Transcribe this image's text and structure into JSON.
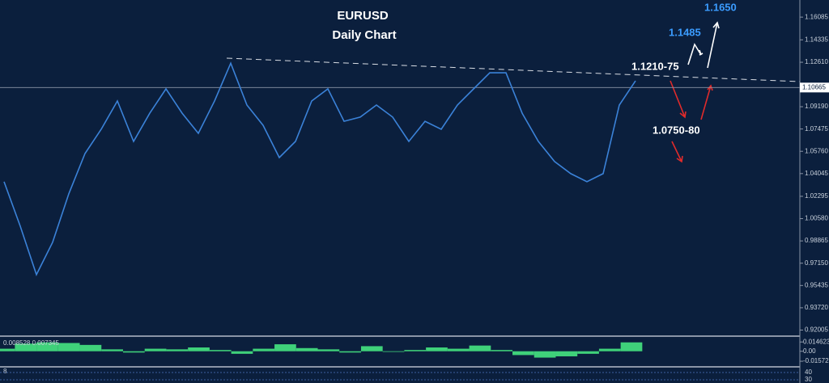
{
  "chart_data": {
    "type": "line",
    "title": "EURUSD",
    "subtitle": "Daily Chart",
    "color": "#3b82d8",
    "values": [
      1.0342,
      1.0,
      0.9627,
      0.9876,
      1.0249,
      1.0559,
      1.0745,
      1.0963,
      1.0652,
      1.0869,
      1.1056,
      1.0869,
      1.0714,
      1.0963,
      1.1254,
      1.0932,
      1.0776,
      1.0528,
      1.0652,
      1.0963,
      1.1056,
      1.0807,
      1.0839,
      1.0932,
      1.0839,
      1.0652,
      1.0807,
      1.0745,
      1.0932,
      1.1056,
      1.118,
      1.118,
      1.0869,
      1.0652,
      1.0497,
      1.0404,
      1.0342,
      1.0404,
      1.0932,
      1.1118
    ],
    "ylim": [
      0.916,
      1.174
    ],
    "yticks": [
      1.16085,
      1.14335,
      {
        "value": 1.1261,
        "label": "1.12610"
      },
      {
        "value": 1.0919,
        "label": "1.09190"
      },
      1.07475,
      {
        "value": 1.0576,
        "label": "1.05760"
      },
      1.04045,
      1.02295,
      {
        "value": 1.0058,
        "label": "1.00580"
      },
      0.98865,
      {
        "value": 0.9715,
        "label": "0.97150"
      },
      0.95435,
      {
        "value": 0.9372,
        "label": "0.93720"
      },
      0.92005
    ],
    "current_price": 1.10665,
    "annotations": [
      "1.1650",
      "1.1485",
      "1.1210-75",
      "1.0750-80"
    ],
    "indicator": {
      "label": "0.008528 0.007345",
      "color": "#3fd17a",
      "values": [
        0.004,
        0.012,
        0.014,
        0.013,
        0.01,
        0.003,
        -0.002,
        0.004,
        0.003,
        0.006,
        0.002,
        -0.004,
        0.004,
        0.011,
        0.005,
        0.003,
        -0.002,
        0.008,
        -0.001,
        0.002,
        0.006,
        0.004,
        0.009,
        0.002,
        -0.006,
        -0.01,
        -0.008,
        -0.004,
        0.004,
        0.014
      ],
      "ylim": [
        -0.022,
        0.02
      ],
      "yticks": [
        0.014623,
        {
          "value": 0,
          "label": "0.00"
        },
        {
          "value": -0.01572,
          "label": "-0.015720"
        }
      ]
    },
    "oscillator": {
      "label": "8",
      "yticks": [
        40,
        30
      ]
    }
  }
}
